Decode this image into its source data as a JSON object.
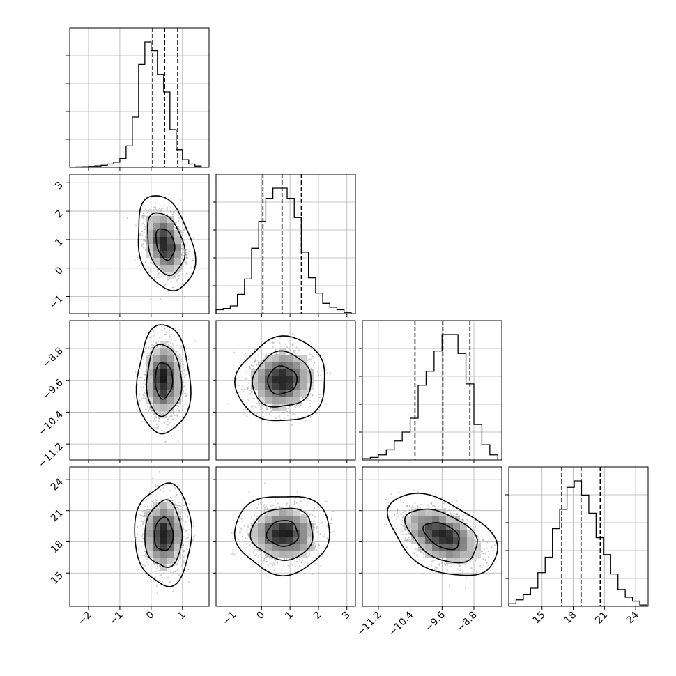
{
  "chart_data": {
    "type": "corner",
    "parameters": [
      {
        "range": [
          -2.6,
          1.85
        ],
        "ticks": [
          -2,
          -1,
          0,
          1
        ],
        "tick_labels": [
          "−2",
          "−1",
          "0",
          "1"
        ],
        "quantiles": [
          0.05,
          0.43,
          0.85
        ],
        "hist_bins": [
          -2.6,
          -2.4,
          -2.2,
          -2.0,
          -1.8,
          -1.6,
          -1.4,
          -1.2,
          -1.0,
          -0.8,
          -0.6,
          -0.4,
          -0.2,
          0.0,
          0.2,
          0.4,
          0.6,
          0.8,
          1.0,
          1.2,
          1.4,
          1.6
        ],
        "hist_counts": [
          0.2,
          0.3,
          0.5,
          0.7,
          1,
          1.5,
          2.5,
          4,
          7,
          17,
          40,
          82,
          100,
          93,
          74,
          60,
          30,
          14,
          6,
          2.5,
          1
        ]
      },
      {
        "range": [
          -1.6,
          3.3
        ],
        "ticks": [
          -1,
          0,
          1,
          2,
          3
        ],
        "tick_labels": [
          "−1",
          "0",
          "1",
          "2",
          "3"
        ],
        "quantiles": [
          0.05,
          0.72,
          1.4
        ],
        "hist_bins": [
          -1.6,
          -1.35,
          -1.1,
          -0.85,
          -0.6,
          -0.35,
          -0.1,
          0.15,
          0.4,
          0.65,
          0.9,
          1.15,
          1.4,
          1.65,
          1.9,
          2.15,
          2.4,
          2.65,
          2.9,
          3.15
        ],
        "hist_counts": [
          3,
          4,
          6,
          15,
          27,
          51,
          72,
          90,
          98,
          98,
          90,
          75,
          48,
          28,
          16,
          8,
          5,
          3,
          1
        ]
      },
      {
        "range": [
          -11.6,
          -8.1
        ],
        "ticks": [
          -11.2,
          -10.4,
          -9.6,
          -8.8
        ],
        "tick_labels": [
          "−11.2",
          "−10.4",
          "−9.6",
          "−8.8"
        ],
        "quantiles": [
          -10.28,
          -9.58,
          -8.9
        ],
        "hist_bins": [
          -11.6,
          -11.4,
          -11.2,
          -11.0,
          -10.8,
          -10.6,
          -10.4,
          -10.2,
          -10.0,
          -9.8,
          -9.6,
          -9.4,
          -9.2,
          -9.0,
          -8.8,
          -8.6,
          -8.4,
          -8.2
        ],
        "hist_counts": [
          1,
          2,
          4,
          8,
          15,
          22,
          33,
          59,
          70,
          86,
          99,
          99,
          84,
          60,
          28,
          12,
          4
        ]
      },
      {
        "range": [
          11.8,
          25.2
        ],
        "ticks": [
          15,
          18,
          21,
          24
        ],
        "tick_labels": [
          "15",
          "18",
          "21",
          "24"
        ],
        "quantiles": [
          16.9,
          18.75,
          20.6
        ],
        "hist_bins": [
          11.8,
          12.5,
          13.2,
          13.9,
          14.6,
          15.3,
          16.0,
          16.7,
          17.4,
          18.1,
          18.8,
          19.5,
          20.2,
          20.9,
          21.6,
          22.3,
          23.0,
          23.7,
          24.4,
          25.1
        ],
        "hist_counts": [
          2,
          5,
          9,
          14,
          26,
          38,
          60,
          75,
          92,
          97,
          86,
          72,
          53,
          40,
          25,
          13,
          7,
          4,
          1
        ]
      }
    ],
    "pairs": [
      {
        "x": 0,
        "y": 1,
        "center": [
          0.45,
          0.85
        ],
        "sigma": [
          0.3,
          0.55
        ],
        "rho": -0.3
      },
      {
        "x": 0,
        "y": 2,
        "center": [
          0.4,
          -9.6
        ],
        "sigma": [
          0.28,
          0.45
        ],
        "rho": 0.0
      },
      {
        "x": 1,
        "y": 2,
        "center": [
          0.72,
          -9.6
        ],
        "sigma": [
          0.52,
          0.35
        ],
        "rho": 0.05
      },
      {
        "x": 0,
        "y": 3,
        "center": [
          0.4,
          18.7
        ],
        "sigma": [
          0.3,
          1.6
        ],
        "rho": 0.0
      },
      {
        "x": 1,
        "y": 3,
        "center": [
          0.75,
          18.8
        ],
        "sigma": [
          0.55,
          1.25
        ],
        "rho": 0.0
      },
      {
        "x": 2,
        "y": 3,
        "center": [
          -9.6,
          18.6
        ],
        "sigma": [
          0.45,
          1.3
        ],
        "rho": -0.45
      }
    ],
    "grid": true
  }
}
